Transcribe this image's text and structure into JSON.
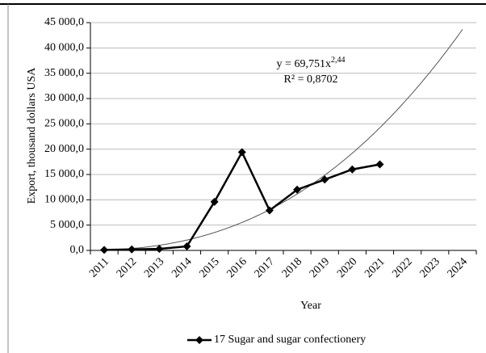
{
  "chart_data": {
    "type": "line",
    "y_label": "Export, thousand dollars USA",
    "x_label": "Year",
    "categories": [
      "2011",
      "2012",
      "2013",
      "2014",
      "2015",
      "2016",
      "2017",
      "2018",
      "2019",
      "2020",
      "2021",
      "2022",
      "2023",
      "2024"
    ],
    "series": [
      {
        "name": "17 Sugar and sugar confectionery",
        "color": "#000000",
        "values": [
          100,
          200,
          300,
          800,
          9600,
          19400,
          7900,
          12000,
          14000,
          16000,
          17000,
          null,
          null,
          null
        ]
      }
    ],
    "trendline": {
      "color": "#555555",
      "coefficient": {
        "value": 69.751,
        "label": "y = 69,751x"
      },
      "exponent": {
        "value": 2.44,
        "label": "2,44"
      },
      "r_squared_label": "R² = 0,8702"
    },
    "ylim": [
      0,
      45000
    ],
    "yticks": [
      {
        "value": 0,
        "label": "0,0"
      },
      {
        "value": 5000,
        "label": "5 000,0"
      },
      {
        "value": 10000,
        "label": "10 000,0"
      },
      {
        "value": 15000,
        "label": "15 000,0"
      },
      {
        "value": 20000,
        "label": "20 000,0"
      },
      {
        "value": 25000,
        "label": "25 000,0"
      },
      {
        "value": 30000,
        "label": "30 000,0"
      },
      {
        "value": 35000,
        "label": "35 000,0"
      },
      {
        "value": 40000,
        "label": "40 000,0"
      },
      {
        "value": 45000,
        "label": "45 000,0"
      }
    ],
    "grid": true,
    "legend": "bottom"
  }
}
